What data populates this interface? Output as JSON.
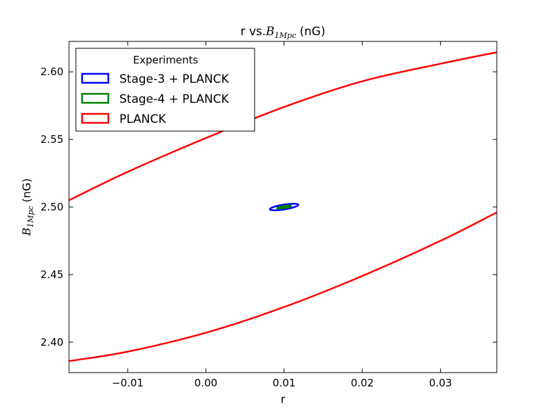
{
  "chart_data": {
    "type": "line",
    "title": {
      "prefix": "r vs.",
      "math_symbol": "B",
      "math_subscript": "1Mpc",
      "suffix": "(nG)"
    },
    "xlabel": "r",
    "ylabel": {
      "math_symbol": "B",
      "math_subscript": "1Mpc",
      "suffix": "(nG)"
    },
    "xlim": [
      -0.0175,
      0.0372
    ],
    "ylim": [
      2.3775,
      2.6225
    ],
    "x_ticks": [
      -0.01,
      0.0,
      0.01,
      0.02,
      0.03
    ],
    "x_tick_labels": [
      "−0.01",
      "0.00",
      "0.01",
      "0.02",
      "0.03"
    ],
    "y_ticks": [
      2.4,
      2.45,
      2.5,
      2.55,
      2.6
    ],
    "y_tick_labels": [
      "2.40",
      "2.45",
      "2.50",
      "2.55",
      "2.60"
    ],
    "grid": false,
    "legend": {
      "title": "Experiments",
      "position": "top-left",
      "entries": [
        "Stage-3 + PLANCK",
        "Stage-4 + PLANCK",
        "PLANCK"
      ]
    },
    "series": [
      {
        "name": "Stage-3 + PLANCK",
        "color": "#0000ff",
        "shape": "ellipse",
        "center": [
          0.01,
          2.5
        ],
        "angle_deg": 9,
        "semi_axes_px": [
          21,
          3.5
        ]
      },
      {
        "name": "Stage-4 + PLANCK",
        "color": "#008000",
        "shape": "ellipse",
        "center": [
          0.01,
          2.5
        ],
        "angle_deg": 9,
        "semi_axes_px": [
          11,
          2.2
        ]
      },
      {
        "name": "PLANCK",
        "color": "#ff0000",
        "shape": "contour",
        "upper": {
          "x": [
            -0.0175,
            -0.01,
            0.0,
            0.01,
            0.02,
            0.03,
            0.0372
          ],
          "y": [
            2.505,
            2.526,
            2.551,
            2.574,
            2.593,
            2.606,
            2.6145
          ]
        },
        "lower": {
          "x": [
            -0.0175,
            -0.01,
            0.0,
            0.01,
            0.02,
            0.03,
            0.0372
          ],
          "y": [
            2.386,
            2.393,
            2.407,
            2.426,
            2.449,
            2.475,
            2.496
          ]
        }
      }
    ]
  }
}
